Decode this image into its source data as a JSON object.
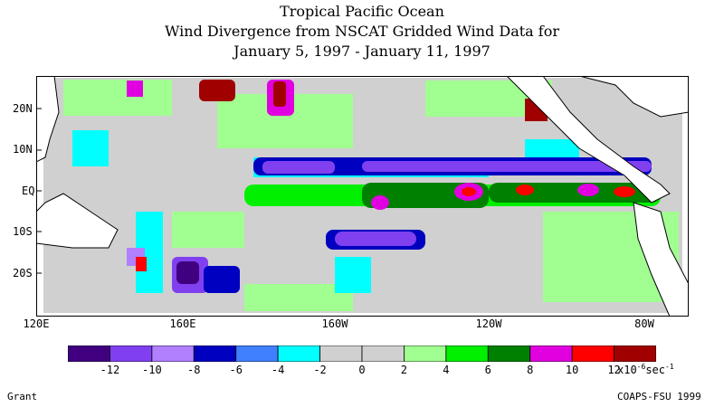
{
  "header": {
    "line1": "Tropical Pacific Ocean",
    "line2": "Wind Divergence from NSCAT Gridded Wind Data for",
    "line3": "January 5, 1997 - January 11, 1997"
  },
  "map": {
    "lat_labels": [
      "20N",
      "10N",
      "EQ",
      "10S",
      "20S"
    ],
    "lon_labels": [
      "120E",
      "160E",
      "160W",
      "120W",
      "80W"
    ]
  },
  "colorbar": {
    "colors": [
      "#400080",
      "#8040f0",
      "#b080ff",
      "#0000c0",
      "#4080ff",
      "#00ffff",
      "#d0d0d0",
      "#d0d0d0",
      "#a0ff90",
      "#00f000",
      "#008000",
      "#e000e0",
      "#ff0000",
      "#a00000"
    ],
    "tick_labels": [
      "-12",
      "-10",
      "-8",
      "-6",
      "-4",
      "-2",
      "0",
      "2",
      "4",
      "6",
      "8",
      "10",
      "12"
    ],
    "unit_prefix": "x10",
    "unit_exp": "-6",
    "unit_suffix": "sec",
    "unit_exp2": "-1"
  },
  "footer": {
    "left": "Grant",
    "right": "COAPS-FSU 1999"
  }
}
